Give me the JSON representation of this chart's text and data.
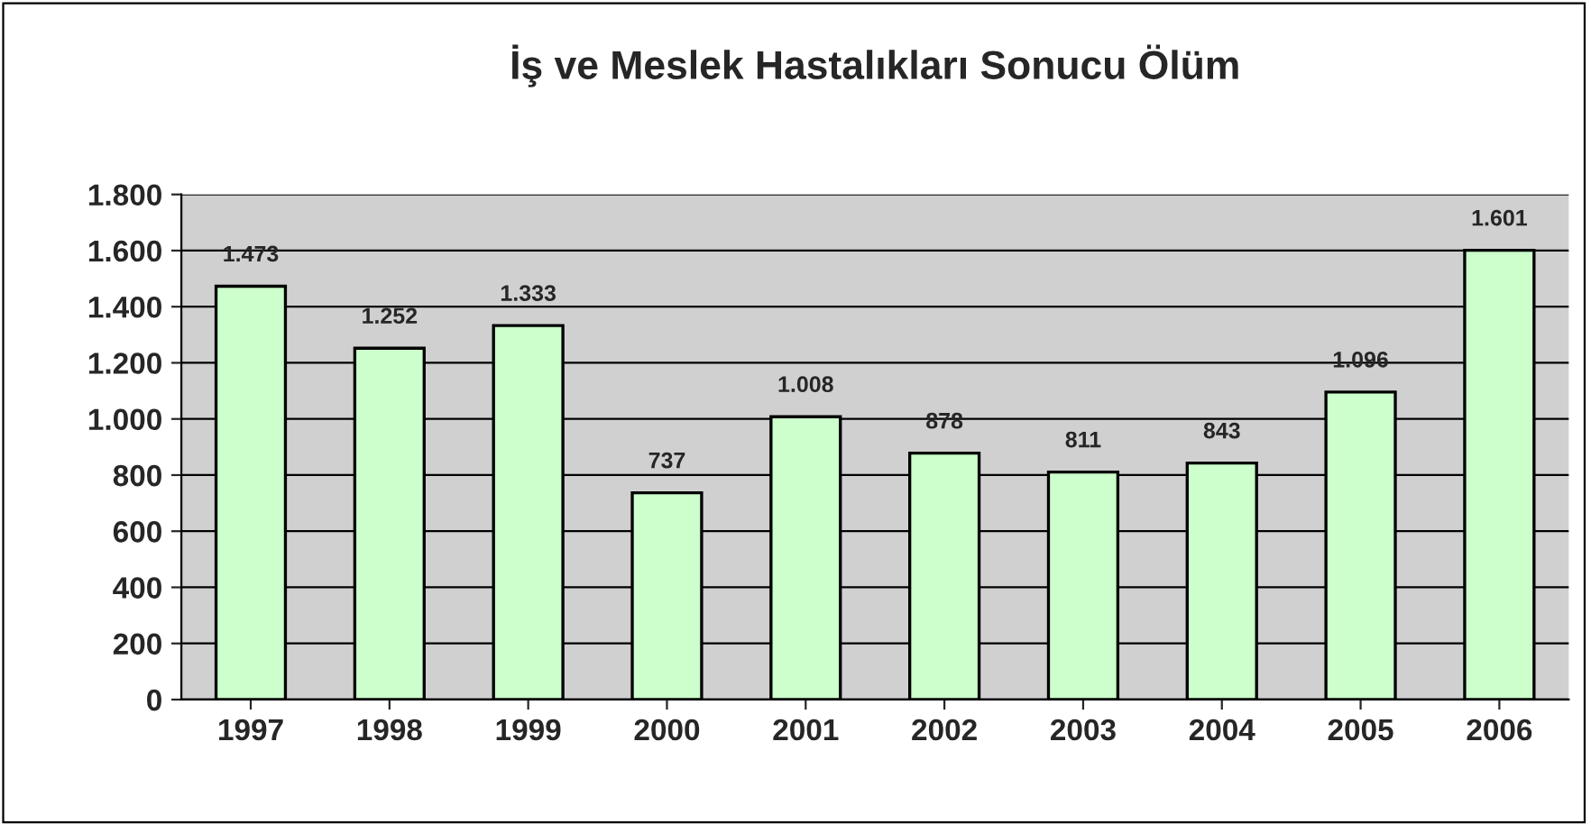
{
  "chart_data": {
    "type": "bar",
    "title": "İş ve Meslek Hastalıkları Sonucu Ölüm",
    "categories": [
      "1997",
      "1998",
      "1999",
      "2000",
      "2001",
      "2002",
      "2003",
      "2004",
      "2005",
      "2006"
    ],
    "values": [
      1473,
      1252,
      1333,
      737,
      1008,
      878,
      811,
      843,
      1096,
      1601
    ],
    "value_labels": [
      "1.473",
      "1.252",
      "1.333",
      "737",
      "1.008",
      "878",
      "811",
      "843",
      "1.096",
      "1.601"
    ],
    "color": "#ccffcc",
    "ylim": [
      0,
      1800
    ],
    "yticks": [
      0,
      200,
      400,
      600,
      800,
      {
        "value": 1000,
        "label": "1.000"
      },
      {
        "value": 1200,
        "label": "1.200"
      },
      {
        "value": 1400,
        "label": "1.400"
      },
      {
        "value": 1600,
        "label": "1.600"
      },
      {
        "value": 1800,
        "label": "1.800"
      }
    ],
    "grid": "y",
    "legend": false
  }
}
